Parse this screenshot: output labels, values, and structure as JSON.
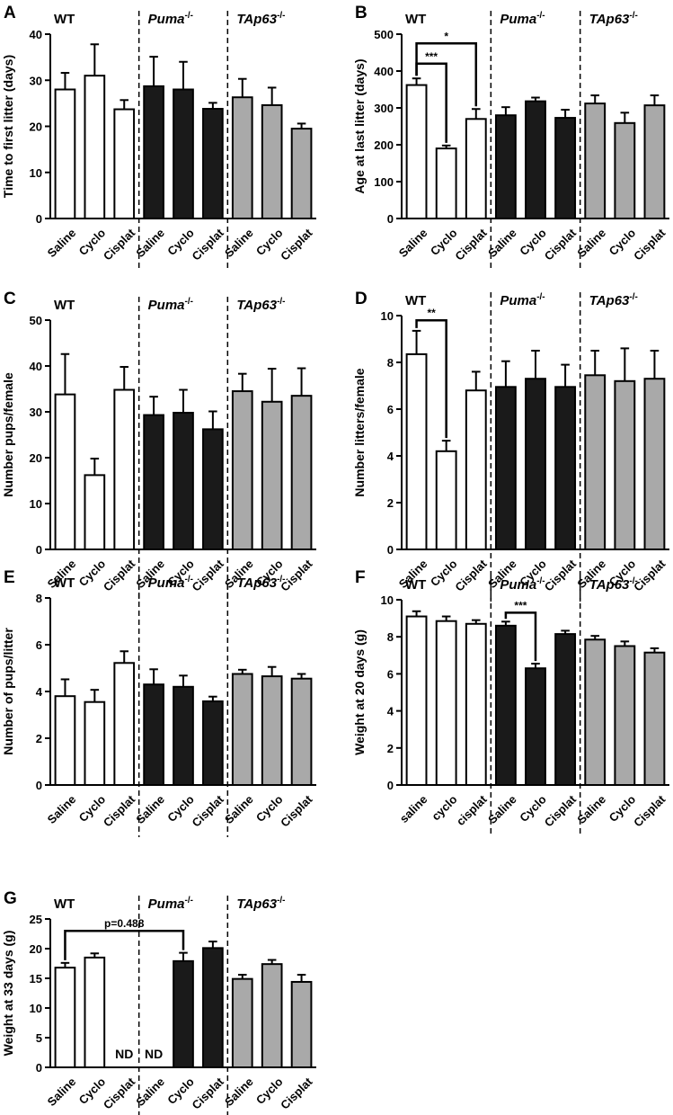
{
  "chart_data": [
    {
      "type": "bar",
      "letter": "A",
      "ylabel": "Time to first litter (days)",
      "ylim": [
        0,
        40
      ],
      "yticks": [
        0,
        10,
        20,
        30,
        40
      ],
      "groups": [
        {
          "label": "WT",
          "italic": false,
          "sup": ""
        },
        {
          "label": "Puma",
          "italic": true,
          "sup": "-/-"
        },
        {
          "label": "TAp63",
          "italic": true,
          "sup": "-/-"
        }
      ],
      "categories": [
        "Saline",
        "Cyclo",
        "Cisplat",
        "Saline",
        "Cyclo",
        "Cisplat",
        "Saline",
        "Cyclo",
        "Cisplat"
      ],
      "values": [
        28,
        31,
        23.7,
        28.7,
        28,
        23.8,
        26.3,
        24.6,
        19.5
      ],
      "errors": [
        3.6,
        6.8,
        2.0,
        6.4,
        6.0,
        1.3,
        4.0,
        3.8,
        1.1
      ],
      "annotations": []
    },
    {
      "type": "bar",
      "letter": "B",
      "ylabel": "Age at last litter (days)",
      "ylim": [
        0,
        500
      ],
      "yticks": [
        0,
        100,
        200,
        300,
        400,
        500
      ],
      "groups": [
        {
          "label": "WT",
          "italic": false,
          "sup": ""
        },
        {
          "label": "Puma",
          "italic": true,
          "sup": "-/-"
        },
        {
          "label": "TAp63",
          "italic": true,
          "sup": "-/-"
        }
      ],
      "categories": [
        "Saline",
        "Cyclo",
        "Cisplat",
        "Saline",
        "Cyclo",
        "Cisplat",
        "Saline",
        "Cyclo",
        "Cisplat"
      ],
      "values": [
        362,
        190,
        270,
        280,
        318,
        273,
        312,
        259,
        307
      ],
      "errors": [
        18,
        8,
        27,
        22,
        10,
        22,
        22,
        28,
        27
      ],
      "annotations": [
        {
          "from": 0,
          "to": 1,
          "label": "***",
          "at": 420
        },
        {
          "from": 0,
          "to": 2,
          "label": "*",
          "at": 475
        }
      ]
    },
    {
      "type": "bar",
      "letter": "C",
      "ylabel": "Number pups/female",
      "ylim": [
        0,
        50
      ],
      "yticks": [
        0,
        10,
        20,
        30,
        40,
        50
      ],
      "groups": [
        {
          "label": "WT",
          "italic": false,
          "sup": ""
        },
        {
          "label": "Puma",
          "italic": true,
          "sup": "-/-"
        },
        {
          "label": "TAp63",
          "italic": true,
          "sup": "-/-"
        }
      ],
      "categories": [
        "Saline",
        "Cyclo",
        "Cisplat",
        "Saline",
        "Cyclo",
        "Cisplat",
        "Saline",
        "Cyclo",
        "Cisplat"
      ],
      "values": [
        33.8,
        16.2,
        34.8,
        29.3,
        29.8,
        26.2,
        34.5,
        32.2,
        33.5
      ],
      "errors": [
        8.8,
        3.6,
        5.0,
        4.0,
        5.0,
        3.9,
        3.8,
        7.2,
        6.0
      ],
      "annotations": []
    },
    {
      "type": "bar",
      "letter": "D",
      "ylabel": "Number litters/female",
      "ylim": [
        0,
        10
      ],
      "yticks": [
        0,
        2,
        4,
        6,
        8,
        10
      ],
      "groups": [
        {
          "label": "WT",
          "italic": false,
          "sup": ""
        },
        {
          "label": "Puma",
          "italic": true,
          "sup": "-/-"
        },
        {
          "label": "TAp63",
          "italic": true,
          "sup": "-/-"
        }
      ],
      "categories": [
        "Saline",
        "Cyclo",
        "Cisplat",
        "Saline",
        "Cyclo",
        "Cisplat",
        "Saline",
        "Cyclo",
        "Cisplat"
      ],
      "values": [
        8.35,
        4.2,
        6.8,
        6.95,
        7.3,
        6.95,
        7.45,
        7.2,
        7.3
      ],
      "errors": [
        1.0,
        0.45,
        0.8,
        1.1,
        1.2,
        0.95,
        1.05,
        1.4,
        1.2
      ],
      "annotations": [
        {
          "from": 0,
          "to": 1,
          "label": "**",
          "at": 9.8
        }
      ]
    },
    {
      "type": "bar",
      "letter": "E",
      "ylabel": "Number of pups/litter",
      "ylim": [
        0,
        8
      ],
      "yticks": [
        0,
        2,
        4,
        6,
        8
      ],
      "groups": [
        {
          "label": "WT",
          "italic": false,
          "sup": ""
        },
        {
          "label": "Puma",
          "italic": true,
          "sup": "-/-"
        },
        {
          "label": "TAp63",
          "italic": true,
          "sup": "-/-"
        }
      ],
      "categories": [
        "Saline",
        "Cyclo",
        "Cisplat",
        "Saline",
        "Cyclo",
        "Cisplat",
        "Saline",
        "Cyclo",
        "Cisplat"
      ],
      "values": [
        3.8,
        3.55,
        5.22,
        4.3,
        4.2,
        3.58,
        4.75,
        4.65,
        4.55
      ],
      "errors": [
        0.72,
        0.52,
        0.5,
        0.65,
        0.48,
        0.2,
        0.18,
        0.4,
        0.2
      ],
      "annotations": []
    },
    {
      "type": "bar",
      "letter": "F",
      "ylabel": "Weight at 20 days (g)",
      "ylim": [
        0,
        10
      ],
      "yticks": [
        0,
        2,
        4,
        6,
        8,
        10
      ],
      "groups": [
        {
          "label": "WT",
          "italic": false,
          "sup": ""
        },
        {
          "label": "Puma",
          "italic": true,
          "sup": "-/-"
        },
        {
          "label": "TAp63",
          "italic": true,
          "sup": "-/-"
        }
      ],
      "categories": [
        "saline",
        "cyclo",
        "cisplat",
        "Saline",
        "Cyclo",
        "Cisplat",
        "Saline",
        "Cyclo",
        "Cisplat"
      ],
      "values": [
        9.1,
        8.85,
        8.7,
        8.6,
        6.3,
        8.15,
        7.85,
        7.5,
        7.15
      ],
      "errors": [
        0.28,
        0.25,
        0.2,
        0.22,
        0.25,
        0.18,
        0.2,
        0.25,
        0.23
      ],
      "annotations": [
        {
          "from": 3,
          "to": 4,
          "label": "***",
          "at": 9.3
        }
      ]
    },
    {
      "type": "bar",
      "letter": "G",
      "ylabel": "Weight at 33 days (g)",
      "ylim": [
        0,
        25
      ],
      "yticks": [
        0,
        5,
        10,
        15,
        20,
        25
      ],
      "groups": [
        {
          "label": "WT",
          "italic": false,
          "sup": ""
        },
        {
          "label": "Puma",
          "italic": true,
          "sup": "-/-"
        },
        {
          "label": "TAp63",
          "italic": true,
          "sup": "-/-"
        }
      ],
      "categories": [
        "Saline",
        "Cyclo",
        "Cisplat",
        "Saline",
        "Cyclo",
        "Cisplat",
        "Saline",
        "Cyclo",
        "Cisplat"
      ],
      "values": [
        16.8,
        18.5,
        null,
        null,
        17.9,
        20.1,
        14.9,
        17.4,
        14.4
      ],
      "errors": [
        0.8,
        0.7,
        null,
        null,
        1.4,
        1.1,
        0.7,
        0.7,
        1.2
      ],
      "missing_label": "ND",
      "annotations": [
        {
          "from": 0,
          "to": 4,
          "label": "p=0.488",
          "at": 23
        }
      ]
    }
  ],
  "colors": {
    "wt": "#ffffff",
    "puma": "#1a1a1a",
    "tap63": "#a9a9a9",
    "stroke": "#000000"
  }
}
